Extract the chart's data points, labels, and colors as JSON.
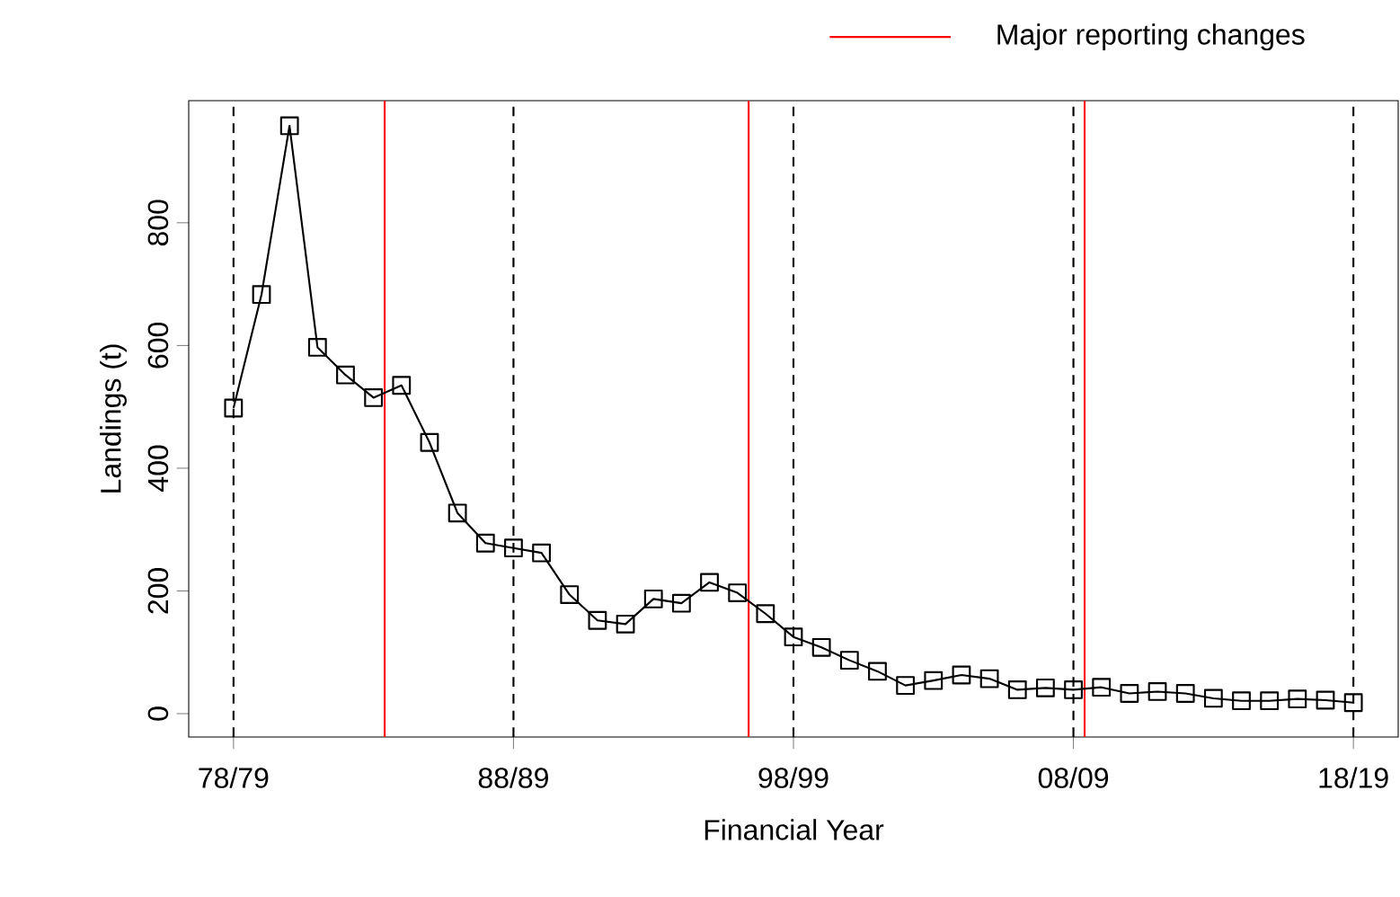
{
  "chart_data": {
    "type": "line",
    "xlabel": "Financial Year",
    "ylabel": "Landings (t)",
    "categories": [
      "78/79",
      null,
      null,
      null,
      null,
      null,
      null,
      null,
      null,
      null,
      "88/89",
      null,
      null,
      null,
      null,
      null,
      null,
      null,
      null,
      null,
      "98/99",
      null,
      null,
      null,
      null,
      null,
      null,
      null,
      null,
      null,
      "08/09",
      null,
      null,
      null,
      null,
      null,
      null,
      null,
      null,
      null,
      "18/19"
    ],
    "values": [
      498,
      683,
      958,
      597,
      552,
      515,
      535,
      442,
      327,
      278,
      270,
      262,
      194,
      152,
      146,
      187,
      180,
      214,
      197,
      163,
      125,
      108,
      87,
      69,
      46,
      54,
      63,
      57,
      39,
      42,
      39,
      43,
      33,
      36,
      33,
      25,
      21,
      21,
      24,
      22,
      18
    ],
    "color": "#000000",
    "marker": "square",
    "line_style": "solid",
    "grid": "x",
    "annotations": [
      "Major reporting changes"
    ],
    "ylim": [
      -38,
      999
    ],
    "yticks": [
      0,
      200,
      400,
      600,
      800
    ]
  }
}
